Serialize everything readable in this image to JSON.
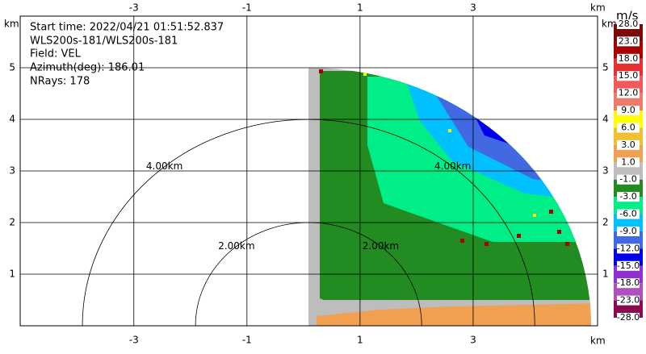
{
  "chart_data": {
    "type": "radar-ppi",
    "annotations": [
      "Start time: 2022/04/21 01:51:52.837",
      "WLS200s-181/WLS200s-181",
      "Field: VEL",
      "Azimuth(deg): 186.01",
      "NRays: 178"
    ],
    "x_label": "km",
    "y_label": "km",
    "xlim": [
      -5.01,
      5.2
    ],
    "ylim": [
      0,
      6
    ],
    "xticks": [
      -3,
      -1,
      1,
      3
    ],
    "yticks": [
      1,
      2,
      3,
      4,
      5
    ],
    "grid": true,
    "range_rings": [
      {
        "radius": 2,
        "label": "2.00km"
      },
      {
        "radius": 4,
        "label": "4.00km"
      }
    ],
    "radar_x": 0.09,
    "colorbar": {
      "label": "m/s",
      "ticks": [
        {
          "value": 28,
          "label": "28.0"
        },
        {
          "value": 23,
          "label": "23.0"
        },
        {
          "value": 18,
          "label": "18.0"
        },
        {
          "value": 15,
          "label": "15.0"
        },
        {
          "value": 12,
          "label": "12.0"
        },
        {
          "value": 9,
          "label": "9.0"
        },
        {
          "value": 6,
          "label": "6.0"
        },
        {
          "value": 3,
          "label": "3.0"
        },
        {
          "value": 1,
          "label": "1.0"
        },
        {
          "value": -1,
          "label": "-1.0"
        },
        {
          "value": -3,
          "label": "-3.0"
        },
        {
          "value": -6,
          "label": "-6.0"
        },
        {
          "value": -9,
          "label": "-9.0"
        },
        {
          "value": -12,
          "label": "-12.0"
        },
        {
          "value": -15,
          "label": "-15.0"
        },
        {
          "value": -18,
          "label": "-18.0"
        },
        {
          "value": -23,
          "label": "-23.0"
        },
        {
          "value": -28,
          "label": "-28.0"
        }
      ],
      "colors": [
        "#7a0a0a",
        "#a80000",
        "#e83030",
        "#f05a5a",
        "#f07a6a",
        "#ffff00",
        "#f0c030",
        "#f0a050",
        "#bdbdbd",
        "#228b22",
        "#00ee88",
        "#00c0ff",
        "#4169e1",
        "#0000ee",
        "#9030d0",
        "#b050c0",
        "#8b0a50"
      ]
    }
  }
}
